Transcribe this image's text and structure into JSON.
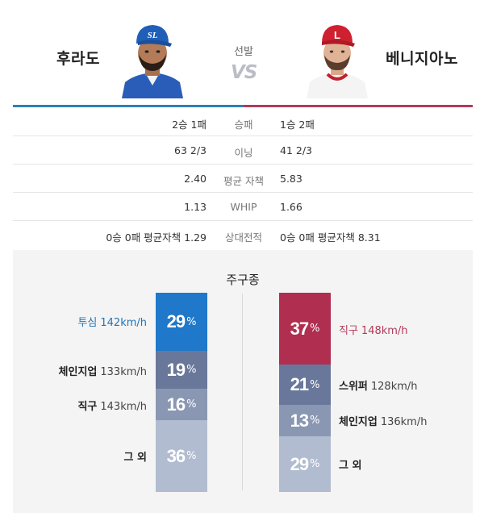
{
  "header": {
    "left_pitcher": "후라도",
    "right_pitcher": "베니지아노",
    "center_label": "선발",
    "vs": "VS"
  },
  "colors": {
    "home_accent": "#2e7fb8",
    "away_accent": "#b33a5a",
    "bar_blue": "#1f78c9",
    "bar_red": "#b02e50",
    "bar_dark": "#69789a",
    "bar_mid": "#8a97b3",
    "bar_light": "#b1bcd0"
  },
  "stats": [
    {
      "label": "승패",
      "left": "2승 1패",
      "right": "1승 2패"
    },
    {
      "label": "이닝",
      "left": "63 2/3",
      "right": "41 2/3"
    },
    {
      "label": "평균 자책",
      "left": "2.40",
      "right": "5.83"
    },
    {
      "label": "WHIP",
      "left": "1.13",
      "right": "1.66"
    },
    {
      "label": "상대전적",
      "left": "0승 0패 평균자책 1.29",
      "right": "0승 0패 평균자책 8.31"
    }
  ],
  "pitch_mix": {
    "title": "주구종",
    "left": [
      {
        "name": "투심",
        "speed": "142km/h",
        "pct": "29",
        "pct_sign": "%"
      },
      {
        "name": "체인지업",
        "speed": "133km/h",
        "pct": "19",
        "pct_sign": "%"
      },
      {
        "name": "직구",
        "speed": "143km/h",
        "pct": "16",
        "pct_sign": "%"
      },
      {
        "name": "그 외",
        "speed": "",
        "pct": "36",
        "pct_sign": "%"
      }
    ],
    "right": [
      {
        "name": "직구",
        "speed": "148km/h",
        "pct": "37",
        "pct_sign": "%"
      },
      {
        "name": "스위퍼",
        "speed": "128km/h",
        "pct": "21",
        "pct_sign": "%"
      },
      {
        "name": "체인지업",
        "speed": "136km/h",
        "pct": "13",
        "pct_sign": "%"
      },
      {
        "name": "그 외",
        "speed": "",
        "pct": "29",
        "pct_sign": "%"
      }
    ]
  }
}
